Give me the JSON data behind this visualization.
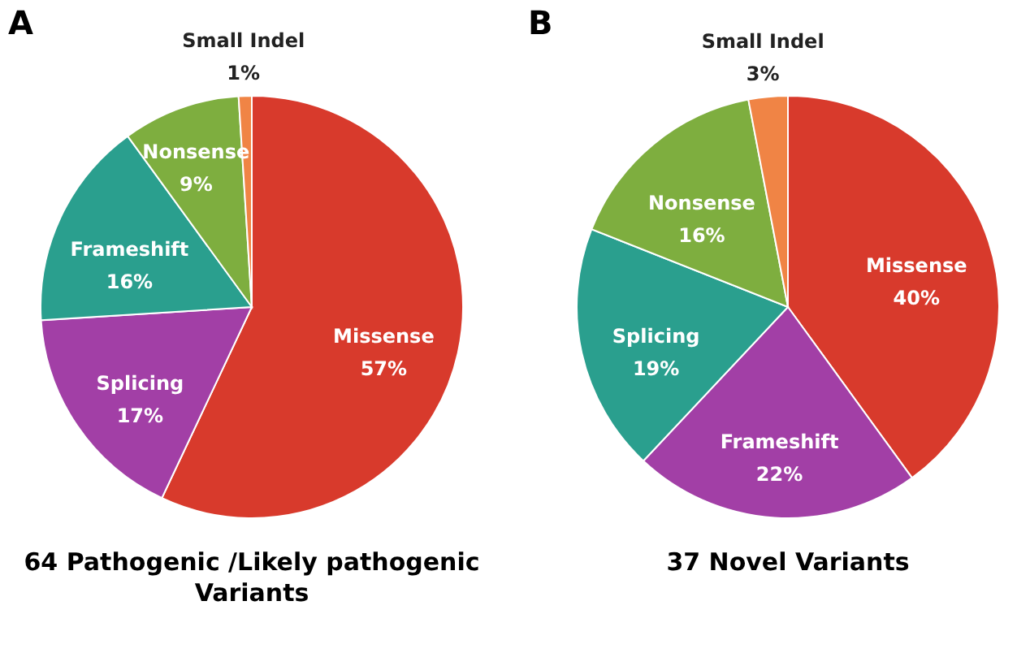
{
  "chart_data": [
    {
      "type": "pie",
      "title": "A",
      "annotations": [
        "64 Pathogenic /Likely pathogenic Variants"
      ],
      "categories": [
        "Missense",
        "Splicing",
        "Frameshift",
        "Nonsense",
        "Small Indel"
      ],
      "values": [
        57,
        17,
        16,
        9,
        1
      ],
      "value_labels": [
        "57%",
        "17%",
        "16%",
        "9%",
        "1%"
      ],
      "colors": [
        "#d83a2c",
        "#a23fa6",
        "#2a9f8e",
        "#7eae3f",
        "#f08445"
      ],
      "legend": false
    },
    {
      "type": "pie",
      "title": "B",
      "annotations": [
        "37 Novel Variants"
      ],
      "categories": [
        "Missense",
        "Frameshift",
        "Splicing",
        "Nonsense",
        "Small Indel"
      ],
      "values": [
        40,
        22,
        19,
        16,
        3
      ],
      "value_labels": [
        "40%",
        "22%",
        "19%",
        "16%",
        "3%"
      ],
      "colors": [
        "#d83a2c",
        "#a23fa6",
        "#2a9f8e",
        "#7eae3f",
        "#f08445"
      ],
      "legend": false
    }
  ]
}
